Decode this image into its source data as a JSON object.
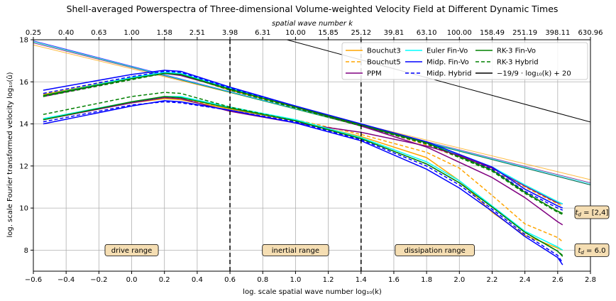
{
  "chart_data": {
    "type": "line",
    "title": "Shell-averaged Powerspectra of Three-dimensional Volume-weighted Velocity Field at Different Dynamic Times",
    "xlabel": "log. scale spatial wave number log₁₀(k)",
    "ylabel": "log. scale Fourier transformed velocity log₁₀(û)",
    "top_xlabel": "spatial wave number k",
    "xlim": [
      -0.6,
      2.8
    ],
    "ylim": [
      7,
      18
    ],
    "xticks": [
      -0.6,
      -0.4,
      -0.2,
      0.0,
      0.2,
      0.4,
      0.6,
      0.8,
      1.0,
      1.2,
      1.4,
      1.6,
      1.8,
      2.0,
      2.2,
      2.4,
      2.6,
      2.8
    ],
    "xtick_labels": [
      "−0.6",
      "−0.4",
      "−0.2",
      "0.0",
      "0.2",
      "0.4",
      "0.6",
      "0.8",
      "1.0",
      "1.2",
      "1.4",
      "1.6",
      "1.8",
      "2.0",
      "2.2",
      "2.4",
      "2.6",
      "2.8"
    ],
    "yticks": [
      8,
      10,
      12,
      14,
      16,
      18
    ],
    "ytick_labels": [
      "8",
      "10",
      "12",
      "14",
      "16",
      "18"
    ],
    "top_ticks": [
      -0.6,
      -0.4,
      -0.2,
      0.0,
      0.2,
      0.4,
      0.6,
      0.8,
      1.0,
      1.2,
      1.4,
      1.6,
      1.8,
      2.0,
      2.2,
      2.4,
      2.6,
      2.8
    ],
    "top_tick_labels": [
      "0.25",
      "0.40",
      "0.63",
      "1.00",
      "1.58",
      "2.51",
      "3.98",
      "6.31",
      "10.00",
      "15.85",
      "25.12",
      "39.81",
      "63.10",
      "100.00",
      "158.49",
      "251.19",
      "398.11",
      "630.96"
    ],
    "grid": true,
    "legend_position": "top-right",
    "legend": [
      {
        "label": "Bouchut3",
        "color": "#ffa500",
        "dash": "solid"
      },
      {
        "label": "Bouchut5",
        "color": "#ffa500",
        "dash": "dashed"
      },
      {
        "label": "PPM",
        "color": "#800080",
        "dash": "solid"
      },
      {
        "label": "Euler Fin-Vo",
        "color": "#00ffff",
        "dash": "solid"
      },
      {
        "label": "Midp. Fin-Vo",
        "color": "#0000ff",
        "dash": "solid"
      },
      {
        "label": "Midp. Hybrid",
        "color": "#0000ff",
        "dash": "dashed"
      },
      {
        "label": "RK-3  Fin-Vo",
        "color": "#008000",
        "dash": "solid"
      },
      {
        "label": "RK-3  Hybrid",
        "color": "#008000",
        "dash": "dashed"
      },
      {
        "label": "−19/9 · log₁₀(k) + 20",
        "color": "#000000",
        "dash": "solid"
      }
    ],
    "vlines": [
      0.6,
      1.4
    ],
    "range_labels": [
      {
        "text": "drive range",
        "x": 0.0,
        "y": 8.0
      },
      {
        "text": "inertial range",
        "x": 1.0,
        "y": 8.0
      },
      {
        "text": "dissipation range",
        "x": 1.85,
        "y": 8.0
      }
    ],
    "time_labels": [
      {
        "text": "t_d = [2,4]",
        "x": 2.8,
        "y": 9.8
      },
      {
        "text": "t_d = 6.0",
        "x": 2.8,
        "y": 8.0
      }
    ],
    "reference_line": {
      "slope": -2.111,
      "intercept": 20,
      "x": [
        0.0,
        2.8
      ]
    },
    "fit_lines": [
      {
        "color": "#ffa500",
        "x": [
          -0.6,
          2.8
        ],
        "y": [
          17.75,
          11.35
        ]
      },
      {
        "color": "#800080",
        "x": [
          -0.6,
          2.8
        ],
        "y": [
          17.85,
          11.2
        ]
      },
      {
        "color": "#0000ff",
        "x": [
          -0.6,
          2.8
        ],
        "y": [
          17.95,
          11.1
        ]
      },
      {
        "color": "#008000",
        "x": [
          -0.6,
          2.8
        ],
        "y": [
          17.9,
          11.1
        ]
      },
      {
        "color": "#00ffff",
        "x": [
          -0.6,
          2.8
        ],
        "y": [
          17.9,
          11.15
        ]
      }
    ],
    "series": [
      {
        "name": "Bouchut3",
        "time": "2,4",
        "color": "#ffa500",
        "dash": "solid",
        "x": [
          -0.54,
          0.0,
          0.2,
          0.3,
          0.6,
          1.0,
          1.4,
          1.8,
          2.2,
          2.4,
          2.6,
          2.63
        ],
        "y": [
          15.4,
          16.2,
          16.4,
          16.35,
          15.6,
          14.8,
          13.95,
          13.1,
          11.9,
          11.1,
          10.3,
          10.2
        ]
      },
      {
        "name": "Bouchut5",
        "time": "2,4",
        "color": "#ffa500",
        "dash": "dashed",
        "x": [
          -0.54,
          0.0,
          0.2,
          0.3,
          0.6,
          1.0,
          1.4,
          1.8,
          2.2,
          2.4,
          2.6,
          2.63
        ],
        "y": [
          15.35,
          16.2,
          16.4,
          16.35,
          15.65,
          14.8,
          13.95,
          13.0,
          11.8,
          11.0,
          10.2,
          10.1
        ]
      },
      {
        "name": "PPM",
        "time": "2,4",
        "color": "#800080",
        "dash": "solid",
        "x": [
          -0.54,
          0.0,
          0.2,
          0.3,
          0.6,
          1.0,
          1.4,
          1.8,
          2.2,
          2.4,
          2.6,
          2.63
        ],
        "y": [
          15.3,
          16.15,
          16.4,
          16.3,
          15.65,
          14.8,
          13.9,
          13.1,
          11.9,
          11.05,
          10.25,
          10.2
        ]
      },
      {
        "name": "Euler Fin-Vo",
        "time": "2,4",
        "color": "#00ffff",
        "dash": "solid",
        "x": [
          -0.54,
          0.0,
          0.2,
          0.3,
          0.6,
          1.0,
          1.4,
          1.8,
          2.2,
          2.4,
          2.6,
          2.63
        ],
        "y": [
          15.35,
          16.2,
          16.45,
          16.4,
          15.7,
          14.85,
          13.95,
          13.1,
          11.95,
          11.1,
          10.3,
          10.2
        ]
      },
      {
        "name": "Midp. Fin-Vo",
        "time": "2,4",
        "color": "#0000ff",
        "dash": "solid",
        "x": [
          -0.54,
          0.0,
          0.2,
          0.3,
          0.6,
          1.0,
          1.4,
          1.8,
          2.2,
          2.4,
          2.6,
          2.63
        ],
        "y": [
          15.6,
          16.35,
          16.55,
          16.5,
          15.75,
          14.85,
          14.0,
          13.15,
          11.95,
          10.9,
          10.1,
          10.0
        ]
      },
      {
        "name": "Midp. Hybrid",
        "time": "2,4",
        "color": "#0000ff",
        "dash": "dashed",
        "x": [
          -0.54,
          0.0,
          0.2,
          0.3,
          0.6,
          1.0,
          1.4,
          1.8,
          2.2,
          2.4,
          2.6,
          2.63
        ],
        "y": [
          15.45,
          16.25,
          16.5,
          16.45,
          15.7,
          14.85,
          13.95,
          13.05,
          11.85,
          10.8,
          10.0,
          9.9
        ]
      },
      {
        "name": "RK-3  Fin-Vo",
        "time": "2,4",
        "color": "#008000",
        "dash": "solid",
        "x": [
          -0.54,
          0.0,
          0.2,
          0.3,
          0.6,
          1.0,
          1.4,
          1.8,
          2.2,
          2.4,
          2.6,
          2.63
        ],
        "y": [
          15.35,
          16.15,
          16.4,
          16.35,
          15.65,
          14.8,
          13.95,
          13.1,
          11.8,
          10.75,
          9.85,
          9.75
        ]
      },
      {
        "name": "RK-3  Hybrid",
        "time": "2,4",
        "color": "#008000",
        "dash": "dashed",
        "x": [
          -0.54,
          0.0,
          0.2,
          0.3,
          0.6,
          1.0,
          1.4,
          1.8,
          2.2,
          2.4,
          2.6,
          2.63
        ],
        "y": [
          15.3,
          16.1,
          16.4,
          16.35,
          15.6,
          14.75,
          13.9,
          13.05,
          11.75,
          10.7,
          9.8,
          9.7
        ]
      },
      {
        "name": "PPM",
        "time": "2,4 (lower)",
        "color": "#800080",
        "dash": "solid",
        "x": [
          1.4,
          1.8,
          2.2,
          2.4,
          2.6,
          2.63
        ],
        "y": [
          13.9,
          12.9,
          11.45,
          10.5,
          9.35,
          9.2
        ]
      },
      {
        "name": "Bouchut3",
        "time": "6.0",
        "color": "#ffa500",
        "dash": "solid",
        "x": [
          -0.54,
          0.0,
          0.2,
          0.3,
          0.6,
          1.0,
          1.4,
          1.8,
          2.0,
          2.2,
          2.4,
          2.6,
          2.63
        ],
        "y": [
          14.2,
          15.0,
          15.2,
          15.15,
          14.7,
          14.15,
          13.4,
          12.4,
          11.3,
          9.8,
          8.7,
          8.1,
          8.0
        ]
      },
      {
        "name": "Bouchut5",
        "time": "6.0",
        "color": "#ffa500",
        "dash": "dashed",
        "x": [
          -0.54,
          0.0,
          0.2,
          0.3,
          0.6,
          1.0,
          1.4,
          1.8,
          2.0,
          2.2,
          2.4,
          2.6,
          2.63
        ],
        "y": [
          14.25,
          15.05,
          15.25,
          15.2,
          14.75,
          14.2,
          13.5,
          12.65,
          11.9,
          10.6,
          9.25,
          8.6,
          8.4
        ]
      },
      {
        "name": "PPM",
        "time": "6.0",
        "color": "#800080",
        "dash": "solid",
        "x": [
          -0.54,
          0.0,
          0.2,
          0.3,
          0.6,
          1.0,
          1.4,
          1.8,
          2.0,
          2.2
        ],
        "y": [
          14.2,
          15.0,
          15.25,
          15.2,
          14.6,
          14.05,
          13.6,
          12.95,
          12.5,
          11.9
        ]
      },
      {
        "name": "Euler Fin-Vo",
        "time": "6.0",
        "color": "#00ffff",
        "dash": "solid",
        "x": [
          -0.54,
          0.0,
          0.2,
          0.3,
          0.6,
          1.0,
          1.4,
          1.8,
          2.0,
          2.2,
          2.4,
          2.6,
          2.63
        ],
        "y": [
          14.25,
          15.05,
          15.3,
          15.3,
          14.8,
          14.2,
          13.35,
          12.2,
          11.3,
          10.1,
          8.9,
          8.15,
          8.0
        ]
      },
      {
        "name": "Midp. Fin-Vo",
        "time": "6.0",
        "color": "#0000ff",
        "dash": "solid",
        "x": [
          -0.54,
          0.0,
          0.2,
          0.3,
          0.6,
          1.0,
          1.4,
          1.8,
          2.0,
          2.2,
          2.4,
          2.6,
          2.63
        ],
        "y": [
          14.0,
          14.85,
          15.1,
          15.05,
          14.65,
          14.05,
          13.2,
          11.85,
          10.95,
          9.85,
          8.65,
          7.65,
          7.3
        ]
      },
      {
        "name": "Midp. Hybrid",
        "time": "6.0",
        "color": "#0000ff",
        "dash": "dashed",
        "x": [
          -0.54,
          0.0,
          0.2,
          0.3,
          0.6,
          1.0,
          1.4,
          1.8,
          2.0,
          2.2,
          2.4,
          2.6,
          2.63
        ],
        "y": [
          14.1,
          14.9,
          15.05,
          15.0,
          14.65,
          14.1,
          13.25,
          12.0,
          11.1,
          9.95,
          8.75,
          7.75,
          7.4
        ]
      },
      {
        "name": "RK-3  Fin-Vo",
        "time": "6.0",
        "color": "#008000",
        "dash": "solid",
        "x": [
          -0.54,
          0.0,
          0.2,
          0.3,
          0.6,
          1.0,
          1.4,
          1.8,
          2.0,
          2.2,
          2.4,
          2.6,
          2.63
        ],
        "y": [
          14.2,
          15.05,
          15.3,
          15.25,
          14.75,
          14.15,
          13.3,
          12.1,
          11.2,
          10.05,
          8.85,
          7.95,
          7.7
        ]
      },
      {
        "name": "RK-3  Hybrid",
        "time": "6.0",
        "color": "#008000",
        "dash": "dashed",
        "x": [
          -0.54,
          0.0,
          0.2,
          0.3,
          0.6,
          1.0,
          1.4,
          1.8,
          2.0,
          2.2,
          2.4,
          2.6,
          2.63
        ],
        "y": [
          14.45,
          15.3,
          15.5,
          15.45,
          14.8,
          14.15,
          13.3,
          12.1,
          11.2,
          10.05,
          8.85,
          7.95,
          7.75
        ]
      }
    ]
  }
}
